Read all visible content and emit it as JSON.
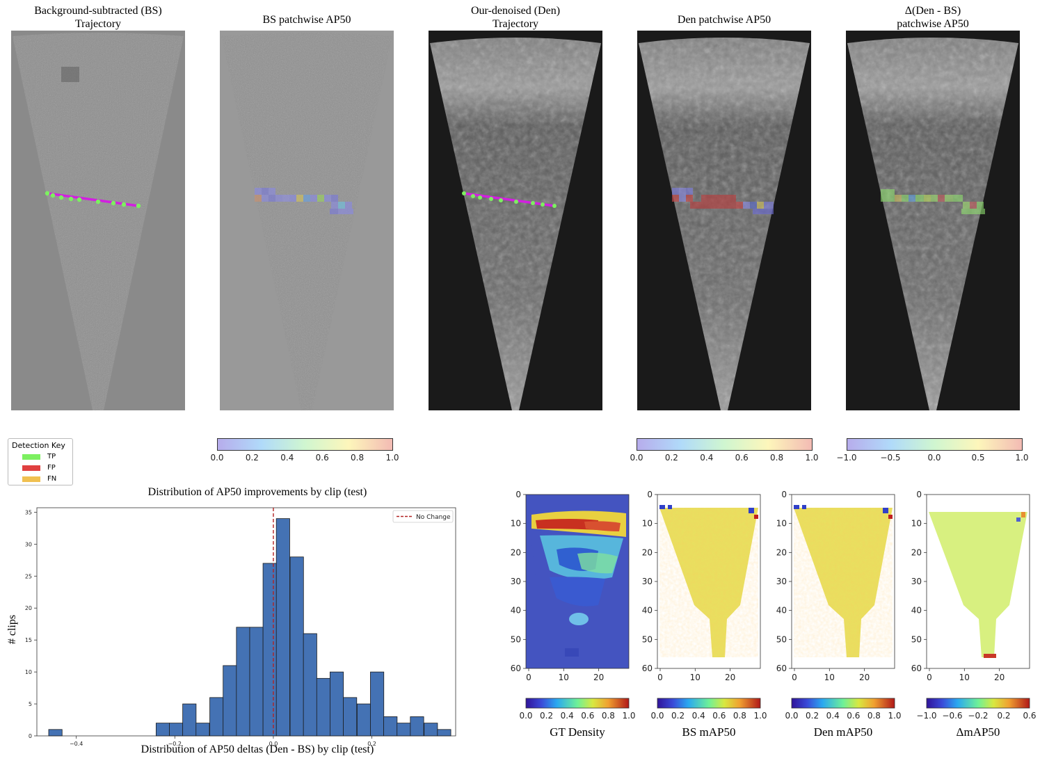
{
  "panels": [
    {
      "id": "bs-trajectory",
      "title_line1": "Background-subtracted (BS)",
      "title_line2": "Trajectory"
    },
    {
      "id": "bs-ap50",
      "title_line1": "BS patchwise AP50",
      "title_line2": ""
    },
    {
      "id": "den-trajectory",
      "title_line1": "Our-denoised (Den)",
      "title_line2": "Trajectory"
    },
    {
      "id": "den-ap50",
      "title_line1": "Den patchwise AP50",
      "title_line2": ""
    },
    {
      "id": "delta-ap50",
      "title_line1": "Δ(Den - BS)",
      "title_line2": "patchwise AP50"
    }
  ],
  "colorbars": {
    "bs": {
      "ticks": [
        "0.0",
        "0.2",
        "0.4",
        "0.6",
        "0.8",
        "1.0"
      ]
    },
    "den": {
      "ticks": [
        "0.0",
        "0.2",
        "0.4",
        "0.6",
        "0.8",
        "1.0"
      ]
    },
    "delta": {
      "ticks": [
        "−1.0",
        "−0.5",
        "0.0",
        "0.5",
        "1.0"
      ]
    }
  },
  "detection_key": {
    "title": "Detection Key",
    "items": [
      {
        "label": "TP",
        "color": "#7cf060"
      },
      {
        "label": "FP",
        "color": "#e04040"
      },
      {
        "label": "FN",
        "color": "#f0c050"
      }
    ]
  },
  "heatmaps": [
    {
      "id": "gt-density",
      "label": "GT Density",
      "cb_ticks": [
        "0.0",
        "0.2",
        "0.4",
        "0.6",
        "0.8",
        "1.0"
      ]
    },
    {
      "id": "bs-map50",
      "label": "BS mAP50",
      "cb_ticks": [
        "0.0",
        "0.2",
        "0.4",
        "0.6",
        "0.8",
        "1.0"
      ]
    },
    {
      "id": "den-map50",
      "label": "Den mAP50",
      "cb_ticks": [
        "0.0",
        "0.2",
        "0.4",
        "0.6",
        "0.8",
        "1.0"
      ]
    },
    {
      "id": "delta-map50",
      "label": "ΔmAP50",
      "cb_ticks": [
        "−1.0",
        "−0.6",
        "−0.2",
        "0.2",
        "0.6"
      ]
    }
  ],
  "heatmap_axes": {
    "yticks": [
      "0",
      "10",
      "20",
      "30",
      "40",
      "50",
      "60"
    ],
    "xticks": [
      "0",
      "10",
      "20"
    ]
  },
  "chart_data": {
    "type": "bar",
    "title": "Distribution of AP50 improvements by clip (test)",
    "xlabel": "Distribution of AP50 deltas (Den - BS) by clip (test)",
    "ylabel": "# clips",
    "legend": "No Change",
    "legend_position": "top-right",
    "xlim": [
      -0.48,
      0.37
    ],
    "ylim": [
      0,
      35.7
    ],
    "xticks": [
      -0.4,
      -0.2,
      0.0,
      0.2
    ],
    "xtick_labels": [
      "−0.4",
      "−0.2",
      "0.0",
      "0.2"
    ],
    "yticks": [
      0,
      5,
      10,
      15,
      20,
      25,
      30,
      35
    ],
    "bin_width": 0.0272,
    "bins_start": [
      -0.456,
      -0.238,
      -0.211,
      -0.184,
      -0.157,
      -0.129,
      -0.102,
      -0.075,
      -0.048,
      -0.021,
      0.006,
      0.034,
      0.061,
      0.088,
      0.115,
      0.142,
      0.17,
      0.197,
      0.224,
      0.251,
      0.278,
      0.306,
      0.333
    ],
    "counts": [
      1,
      2,
      2,
      5,
      2,
      6,
      11,
      17,
      17,
      27,
      34,
      28,
      16,
      9,
      10,
      6,
      5,
      10,
      3,
      2,
      3,
      2,
      1
    ],
    "reference_line_x": 0.0,
    "bar_color": "#4472b4",
    "line_color": "#b22222"
  }
}
